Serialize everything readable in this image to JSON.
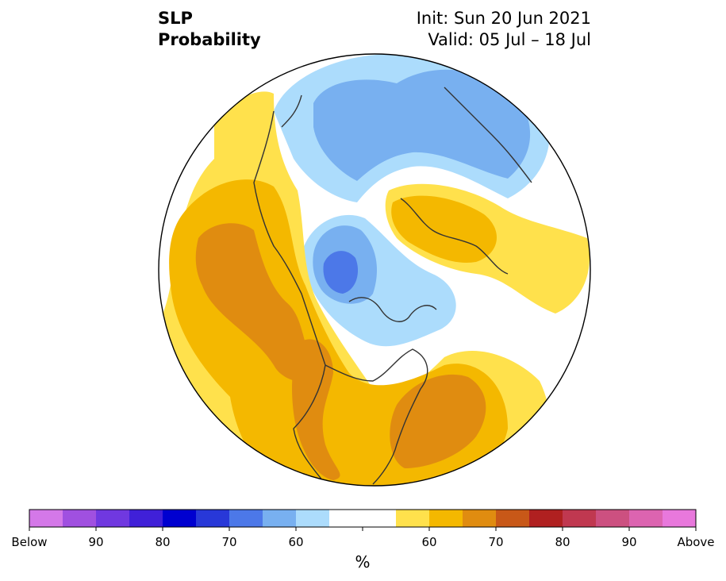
{
  "header": {
    "variable": "SLP",
    "product": "Probability",
    "init": "Init: Sun 20 Jun 2021",
    "valid": "Valid: 05 Jul – 18 Jul"
  },
  "colorbar": {
    "unit": "%",
    "colors": [
      "#d478e8",
      "#a050e0",
      "#7038e0",
      "#4020d8",
      "#0000d0",
      "#2838d8",
      "#4c78e8",
      "#78b0f0",
      "#acdcfc",
      "#ffffff",
      "#ffffff",
      "#ffe14c",
      "#f4b800",
      "#e08c10",
      "#c85818",
      "#b02020",
      "#c03850",
      "#cc5080",
      "#dc64b0",
      "#e878dc"
    ],
    "labels": [
      "Below",
      "90",
      "80",
      "70",
      "60",
      "60",
      "70",
      "80",
      "90",
      "Above"
    ]
  },
  "legend_colors": {
    "below_light": "#acdcfc",
    "below_mid": "#78b0f0",
    "below_strong": "#4c78e8",
    "above_light": "#ffe14c",
    "above_mid": "#f4b800",
    "above_strong": "#e08c10"
  }
}
